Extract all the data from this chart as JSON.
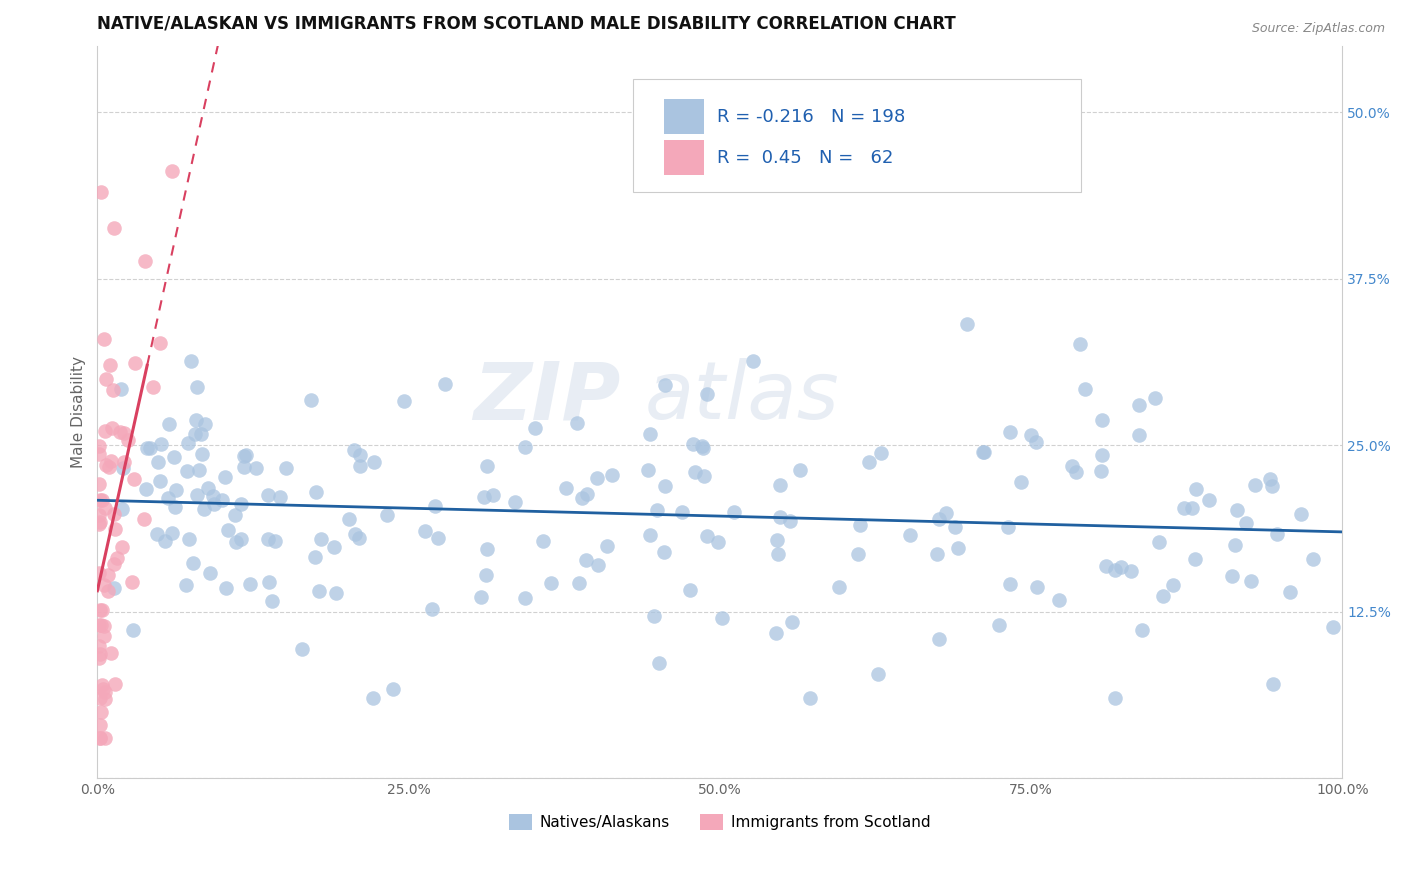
{
  "title": "NATIVE/ALASKAN VS IMMIGRANTS FROM SCOTLAND MALE DISABILITY CORRELATION CHART",
  "source": "Source: ZipAtlas.com",
  "ylabel": "Male Disability",
  "xlim": [
    0.0,
    1.0
  ],
  "ylim": [
    0.0,
    0.55
  ],
  "x_ticks": [
    0.0,
    0.25,
    0.5,
    0.75,
    1.0
  ],
  "x_tick_labels": [
    "0.0%",
    "25.0%",
    "50.0%",
    "75.0%",
    "100.0%"
  ],
  "y_ticks": [
    0.0,
    0.125,
    0.25,
    0.375,
    0.5
  ],
  "y_tick_labels": [
    "",
    "12.5%",
    "25.0%",
    "37.5%",
    "50.0%"
  ],
  "blue_R": -0.216,
  "blue_N": 198,
  "pink_R": 0.45,
  "pink_N": 62,
  "blue_color": "#aac4e0",
  "pink_color": "#f4a8ba",
  "blue_line_color": "#2060a0",
  "pink_line_color": "#d94060",
  "watermark_text": "ZIP",
  "watermark_text2": "atlas",
  "grid_color": "#cccccc",
  "background_color": "#ffffff",
  "title_fontsize": 12,
  "axis_label_fontsize": 11,
  "tick_fontsize": 10,
  "legend_fontsize": 13
}
